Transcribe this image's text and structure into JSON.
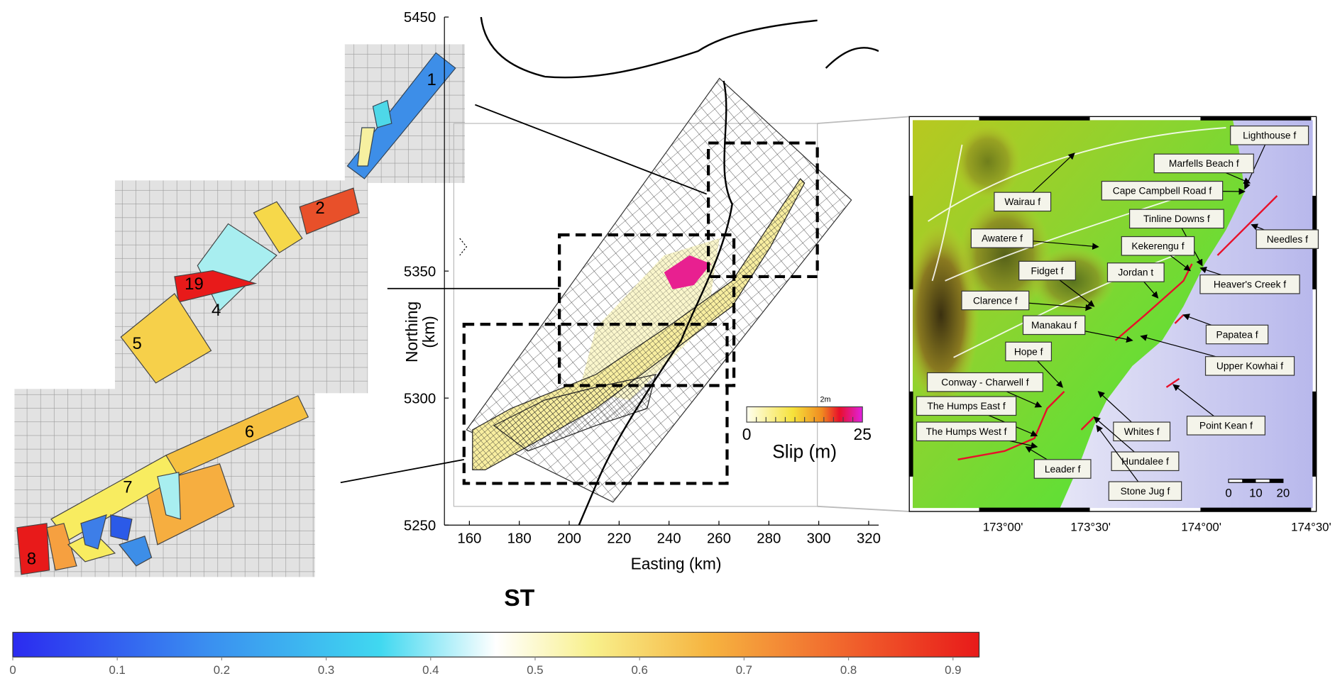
{
  "insets": [
    {
      "labels": [
        "1"
      ]
    },
    {
      "labels": [
        "2",
        "19",
        "4",
        "5"
      ]
    },
    {
      "labels": [
        "6",
        "7",
        "8"
      ]
    }
  ],
  "map": {
    "xlabel": "Easting (km)",
    "ylabel": [
      "Northing",
      "(km)"
    ],
    "xlim": [
      150,
      324
    ],
    "ylim": [
      5250,
      5450
    ],
    "xticks": [
      160,
      180,
      200,
      220,
      240,
      260,
      280,
      300,
      320
    ],
    "yticks": [
      5250,
      5300,
      5350,
      5450
    ]
  },
  "slip_colorbar": {
    "label": "Slip (m)",
    "ticks": [
      0,
      25
    ],
    "lim": [
      0,
      25
    ],
    "marker": {
      "value": 17,
      "label": "2m"
    }
  },
  "fault_map": {
    "lon_ticks": [
      "173°00'",
      "173°30'",
      "174°00'",
      "174°30'"
    ],
    "labels": [
      "Lighthouse f",
      "Marfells Beach f",
      "Cape Campbell Road f",
      "Wairau f",
      "Tinline Downs f",
      "Needles f",
      "Awatere f",
      "Kekerengu f",
      "Fidget f",
      "Jordan t",
      "Heaver's Creek f",
      "Clarence f",
      "Manakau f",
      "Papatea f",
      "Hope f",
      "Upper Kowhai f",
      "Conway - Charwell f",
      "The Humps East f",
      "Whites f",
      "Point Kean f",
      "The Humps West f",
      "Hundalee f",
      "Leader f",
      "Stone Jug f"
    ],
    "scale": {
      "ticks": [
        0,
        10,
        20
      ],
      "lim": [
        0,
        20
      ]
    }
  },
  "title": "ST",
  "colorbar": {
    "lim": [
      0,
      0.925
    ],
    "ticks": [
      0,
      0.1,
      0.2,
      0.3,
      0.4,
      0.5,
      0.6,
      0.7,
      0.8,
      0.9
    ]
  }
}
